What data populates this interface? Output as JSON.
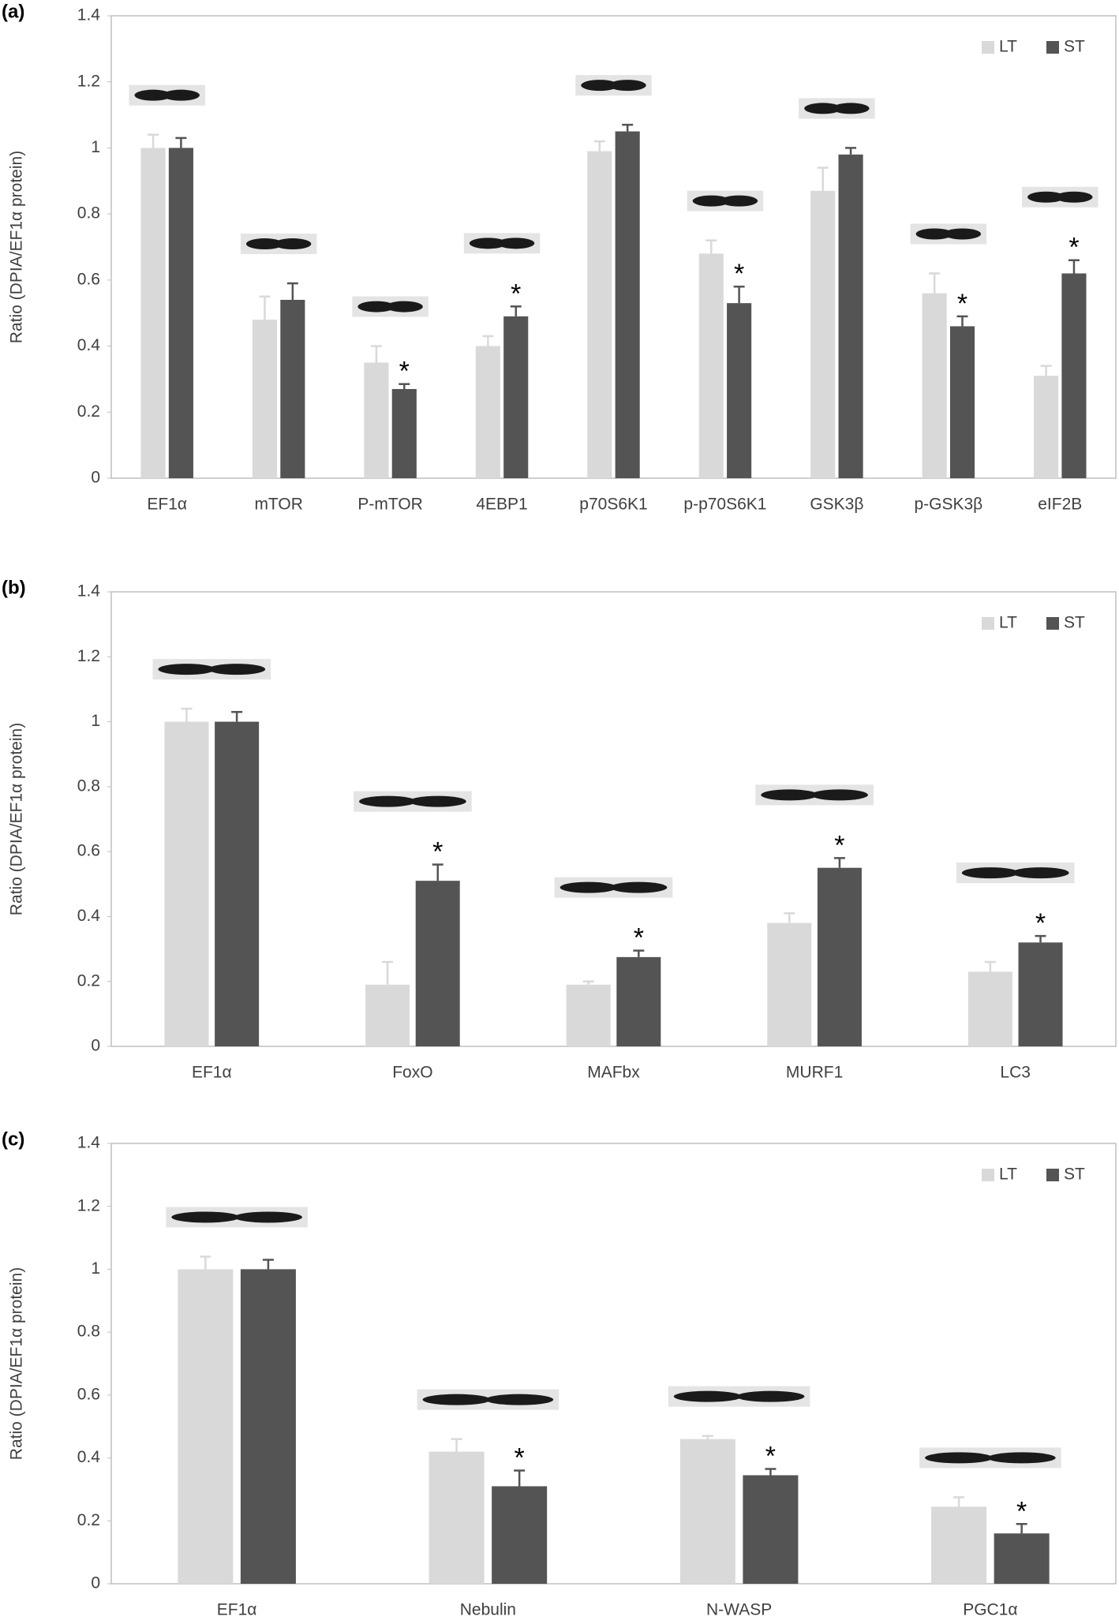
{
  "chart_data": [
    {
      "type": "bar",
      "panel_label": "(a)",
      "ylabel": "Ratio (DPIA/EF1α protein)",
      "categories": [
        "EF1α",
        "mTOR",
        "P-mTOR",
        "4EBP1",
        "p70S6K1",
        "p-p70S6K1",
        "GSK3β",
        "p-GSK3β",
        "eIF2B"
      ],
      "series": [
        {
          "name": "LT",
          "color": "#d9d9d9",
          "values": [
            1.0,
            0.48,
            0.35,
            0.4,
            0.99,
            0.68,
            0.87,
            0.56,
            0.31
          ],
          "errors": [
            0.04,
            0.07,
            0.05,
            0.03,
            0.03,
            0.04,
            0.07,
            0.06,
            0.03
          ]
        },
        {
          "name": "ST",
          "color": "#545454",
          "values": [
            1.0,
            0.54,
            0.27,
            0.49,
            1.05,
            0.53,
            0.98,
            0.46,
            0.62
          ],
          "errors": [
            0.03,
            0.05,
            0.015,
            0.03,
            0.02,
            0.05,
            0.02,
            0.03,
            0.04
          ],
          "markers": [
            null,
            null,
            "*",
            "*",
            null,
            "*",
            null,
            "*",
            "*"
          ]
        }
      ],
      "ylim": [
        0,
        1.4
      ],
      "yticks": [
        0,
        0.2,
        0.4,
        0.6,
        0.8,
        1,
        1.2,
        1.4
      ],
      "legend": "upper right"
    },
    {
      "type": "bar",
      "panel_label": "(b)",
      "ylabel": "Ratio (DPIA/EF1α protein)",
      "categories": [
        "EF1α",
        "FoxO",
        "MAFbx",
        "MURF1",
        "LC3"
      ],
      "series": [
        {
          "name": "LT",
          "color": "#d9d9d9",
          "values": [
            1.0,
            0.19,
            0.19,
            0.38,
            0.23
          ],
          "errors": [
            0.04,
            0.07,
            0.01,
            0.03,
            0.03
          ]
        },
        {
          "name": "ST",
          "color": "#545454",
          "values": [
            1.0,
            0.51,
            0.275,
            0.55,
            0.32
          ],
          "errors": [
            0.03,
            0.05,
            0.02,
            0.03,
            0.02
          ],
          "markers": [
            null,
            "*",
            "*",
            "*",
            "*"
          ]
        }
      ],
      "ylim": [
        0,
        1.4
      ],
      "yticks": [
        0,
        0.2,
        0.4,
        0.6,
        0.8,
        1,
        1.2,
        1.4
      ],
      "legend": "upper right"
    },
    {
      "type": "bar",
      "panel_label": "(c)",
      "ylabel": "Ratio (DPIA/EF1α protein)",
      "categories": [
        "EF1α",
        "Nebulin",
        "N-WASP",
        "PGC1α"
      ],
      "series": [
        {
          "name": "LT",
          "color": "#d9d9d9",
          "values": [
            1.0,
            0.42,
            0.46,
            0.245
          ],
          "errors": [
            0.04,
            0.04,
            0.01,
            0.03
          ]
        },
        {
          "name": "ST",
          "color": "#545454",
          "values": [
            1.0,
            0.31,
            0.345,
            0.16
          ],
          "errors": [
            0.03,
            0.05,
            0.02,
            0.03
          ],
          "markers": [
            null,
            "*",
            "*",
            "*"
          ]
        }
      ],
      "ylim": [
        0,
        1.4
      ],
      "yticks": [
        0,
        0.2,
        0.4,
        0.6,
        0.8,
        1,
        1.2,
        1.4
      ],
      "legend": "upper right"
    }
  ]
}
